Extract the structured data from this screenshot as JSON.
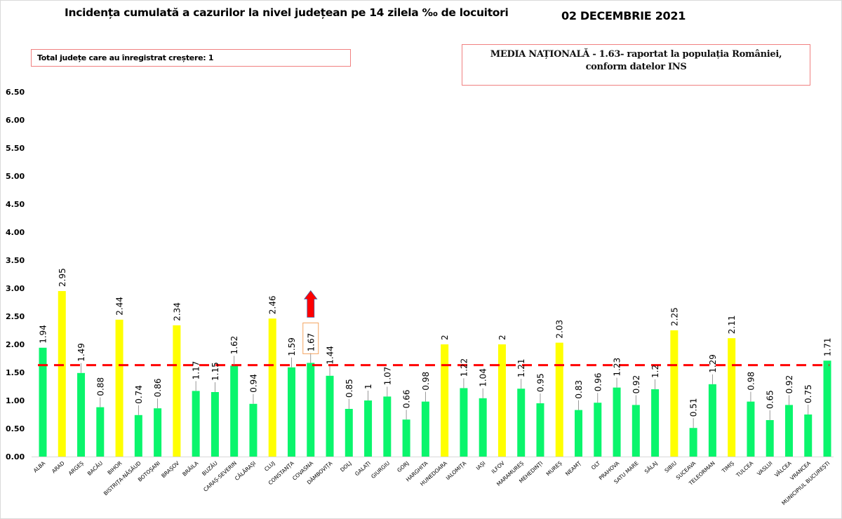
{
  "header": {
    "title": "Incidența cumulată a cazurilor la nivel județean pe 14 zilela ‰ de locuitori",
    "date": "02 DECEMBRIE 2021"
  },
  "notes": {
    "growth_box": "Total județe care au înregistrat creștere: 1",
    "national_line1": "MEDIA NAȚIONALĂ  - 1.63-  raportat la populația României,",
    "national_line2": "conform datelor INS"
  },
  "colors": {
    "above_average": "#ffff00",
    "below_average": "#0af56c",
    "average_line": "#ff0000",
    "arrow": "#ff0000",
    "highlight_box": "#f4a460",
    "note_border": "#f08080"
  },
  "chart_data": {
    "type": "bar",
    "title": "Incidența cumulată a cazurilor la nivel județean pe 14 zilela ‰ de locuitori",
    "xlabel": "",
    "ylabel": "",
    "ylim": [
      0,
      6.5
    ],
    "yticks": [
      "0.00",
      "0.50",
      "1.00",
      "1.50",
      "2.00",
      "2.50",
      "3.00",
      "3.50",
      "4.00",
      "4.50",
      "5.00",
      "5.50",
      "6.00",
      "6.50"
    ],
    "grid": false,
    "reference_line": {
      "value": 1.63,
      "style": "dashed",
      "label": "MEDIA NAȚIONALĂ"
    },
    "categories": [
      "ALBA",
      "ARAD",
      "ARGEȘ",
      "BACĂU",
      "BIHOR",
      "BISTRIȚA-NĂSĂUD",
      "BOTOȘANI",
      "BRAȘOV",
      "BRĂILA",
      "BUZĂU",
      "CARAȘ-SEVERIN",
      "CĂLĂRAȘI",
      "CLUJ",
      "CONSTANȚA",
      "COVASNA",
      "DÂMBOVIȚA",
      "DOLJ",
      "GALAȚI",
      "GIURGIU",
      "GORJ",
      "HARGHITA",
      "HUNEDOARA",
      "IALOMIȚA",
      "IAȘI",
      "ILFOV",
      "MARAMUREȘ",
      "MEHEDINȚI",
      "MUREȘ",
      "NEAMȚ",
      "OLT",
      "PRAHOVA",
      "SATU MARE",
      "SĂLAJ",
      "SIBIU",
      "SUCEAVA",
      "TELEORMAN",
      "TIMIȘ",
      "TULCEA",
      "VASLUI",
      "VÂLCEA",
      "VRANCEA",
      "MUNICIPIUL BUCUREȘTI"
    ],
    "values": [
      1.94,
      2.95,
      1.49,
      0.88,
      2.44,
      0.74,
      0.86,
      2.34,
      1.17,
      1.15,
      1.62,
      0.94,
      2.46,
      1.59,
      1.67,
      1.44,
      0.85,
      1,
      1.07,
      0.66,
      0.98,
      2,
      1.22,
      1.04,
      2,
      1.21,
      0.95,
      2.03,
      0.83,
      0.96,
      1.23,
      0.92,
      1.2,
      2.25,
      0.51,
      1.29,
      2.11,
      0.98,
      0.65,
      0.92,
      0.75,
      1.71
    ],
    "value_labels": [
      "1.94",
      "2.95",
      "1.49",
      "0.88",
      "2.44",
      "0.74",
      "0.86",
      "2.34",
      "1.17",
      "1.15",
      "1.62",
      "0.94",
      "2.46",
      "1.59",
      "1.67",
      "1.44",
      "0.85",
      "1",
      "1.07",
      "0.66",
      "0.98",
      "2",
      "1.22",
      "1.04",
      "2",
      "1.21",
      "0.95",
      "2.03",
      "0.83",
      "0.96",
      "1.23",
      "0.92",
      "1.2",
      "2.25",
      "0.51",
      "1.29",
      "2.11",
      "0.98",
      "0.65",
      "0.92",
      "0.75",
      "1.71"
    ],
    "highlight": {
      "category": "COVASNA",
      "annotation": "increase arrow"
    },
    "color_rule": "yellow if value ≥ 2.0, green otherwise"
  }
}
